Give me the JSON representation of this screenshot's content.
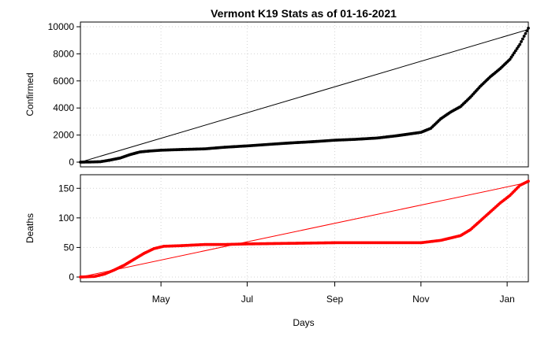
{
  "chart_data": {
    "type": "scatter",
    "title": "Vermont K19 Stats as of 01-16-2021",
    "xlabel": "Days",
    "x_ticks": [
      {
        "label": "May",
        "date": "2020-05-01"
      },
      {
        "label": "Jul",
        "date": "2020-07-01"
      },
      {
        "label": "Sep",
        "date": "2020-09-01"
      },
      {
        "label": "Nov",
        "date": "2020-11-01"
      },
      {
        "label": "Jan",
        "date": "2021-01-01"
      }
    ],
    "xlim": [
      "2020-03-05",
      "2021-01-16"
    ],
    "grid": true,
    "panels": [
      {
        "name": "confirmed",
        "ylabel": "Confirmed",
        "ylim": [
          0,
          10000
        ],
        "yticks": [
          0,
          2000,
          4000,
          6000,
          8000,
          10000
        ],
        "point_color": "#000000",
        "trend_color": "#000000",
        "trend": {
          "start": [
            "2020-03-05",
            0
          ],
          "end": [
            "2021-01-16",
            9800
          ]
        },
        "series": [
          [
            "2020-03-05",
            0
          ],
          [
            "2020-03-12",
            10
          ],
          [
            "2020-03-19",
            30
          ],
          [
            "2020-03-26",
            150
          ],
          [
            "2020-04-02",
            300
          ],
          [
            "2020-04-09",
            550
          ],
          [
            "2020-04-16",
            750
          ],
          [
            "2020-04-23",
            820
          ],
          [
            "2020-05-01",
            880
          ],
          [
            "2020-05-15",
            930
          ],
          [
            "2020-06-01",
            980
          ],
          [
            "2020-06-15",
            1100
          ],
          [
            "2020-07-01",
            1200
          ],
          [
            "2020-07-15",
            1300
          ],
          [
            "2020-08-01",
            1420
          ],
          [
            "2020-08-15",
            1500
          ],
          [
            "2020-09-01",
            1620
          ],
          [
            "2020-09-15",
            1680
          ],
          [
            "2020-10-01",
            1780
          ],
          [
            "2020-10-15",
            1950
          ],
          [
            "2020-11-01",
            2200
          ],
          [
            "2020-11-08",
            2500
          ],
          [
            "2020-11-15",
            3200
          ],
          [
            "2020-11-22",
            3700
          ],
          [
            "2020-11-29",
            4100
          ],
          [
            "2020-12-06",
            4800
          ],
          [
            "2020-12-13",
            5600
          ],
          [
            "2020-12-20",
            6300
          ],
          [
            "2020-12-27",
            6900
          ],
          [
            "2021-01-03",
            7600
          ],
          [
            "2021-01-10",
            8700
          ],
          [
            "2021-01-16",
            9900
          ]
        ]
      },
      {
        "name": "deaths",
        "ylabel": "Deaths",
        "ylim": [
          0,
          165
        ],
        "yticks": [
          0,
          50,
          100,
          150
        ],
        "point_color": "#ff0000",
        "trend_color": "#ff0000",
        "trend": {
          "start": [
            "2020-03-05",
            0
          ],
          "end": [
            "2021-01-16",
            160
          ]
        },
        "series": [
          [
            "2020-03-05",
            0
          ],
          [
            "2020-03-15",
            1
          ],
          [
            "2020-03-22",
            5
          ],
          [
            "2020-03-29",
            12
          ],
          [
            "2020-04-05",
            20
          ],
          [
            "2020-04-12",
            30
          ],
          [
            "2020-04-19",
            40
          ],
          [
            "2020-04-26",
            48
          ],
          [
            "2020-05-03",
            52
          ],
          [
            "2020-05-15",
            53
          ],
          [
            "2020-06-01",
            55
          ],
          [
            "2020-06-15",
            55
          ],
          [
            "2020-07-01",
            56
          ],
          [
            "2020-08-01",
            57
          ],
          [
            "2020-09-01",
            58
          ],
          [
            "2020-10-01",
            58
          ],
          [
            "2020-11-01",
            58
          ],
          [
            "2020-11-15",
            62
          ],
          [
            "2020-11-29",
            70
          ],
          [
            "2020-12-06",
            80
          ],
          [
            "2020-12-13",
            95
          ],
          [
            "2020-12-20",
            110
          ],
          [
            "2020-12-27",
            125
          ],
          [
            "2021-01-03",
            138
          ],
          [
            "2021-01-10",
            155
          ],
          [
            "2021-01-16",
            162
          ]
        ]
      }
    ]
  }
}
